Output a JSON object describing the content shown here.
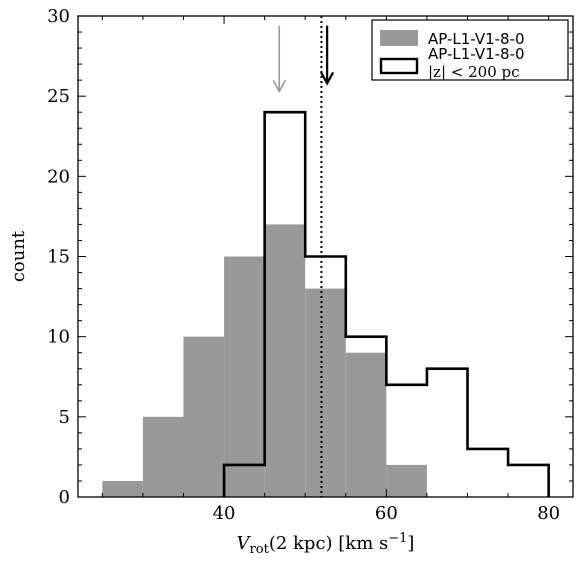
{
  "chart_data": {
    "type": "bar",
    "xlabel": {
      "main": "V",
      "sub": "rot",
      "rest": "(2 kpc) [km s",
      "sup": "−1",
      "end": "]"
    },
    "ylabel": "count",
    "xlim": [
      22,
      83
    ],
    "ylim": [
      0,
      30
    ],
    "xticks": [
      40,
      60,
      80
    ],
    "yticks": [
      0,
      5,
      10,
      15,
      20,
      25,
      30
    ],
    "xticks_minor_step": 5,
    "yticks_minor_step": 1,
    "bin_edges": [
      25,
      30,
      35,
      40,
      45,
      50,
      55,
      60,
      65,
      70,
      75,
      80
    ],
    "series": [
      {
        "name": "AP-L1-V1-8-0",
        "style": "filled",
        "color": "#999999",
        "counts": [
          1,
          5,
          10,
          15,
          17,
          13,
          9,
          2,
          0,
          0,
          0
        ]
      },
      {
        "name": "AP-L1-V1-8-0",
        "name_line2": "|z| < 200 pc",
        "style": "step",
        "color": "#000000",
        "counts": [
          0,
          0,
          0,
          2,
          24,
          15,
          10,
          7,
          8,
          3,
          2
        ]
      }
    ],
    "vline": {
      "x": 52,
      "style": "dotted",
      "color": "#000000"
    },
    "arrows": [
      {
        "x": 46.8,
        "color": "#999999",
        "y_top": 29.4,
        "y_tip": 25.3
      },
      {
        "x": 52.7,
        "color": "#000000",
        "y_top": 29.4,
        "y_tip": 25.8
      }
    ],
    "legend": {
      "placement": "top-right"
    }
  }
}
